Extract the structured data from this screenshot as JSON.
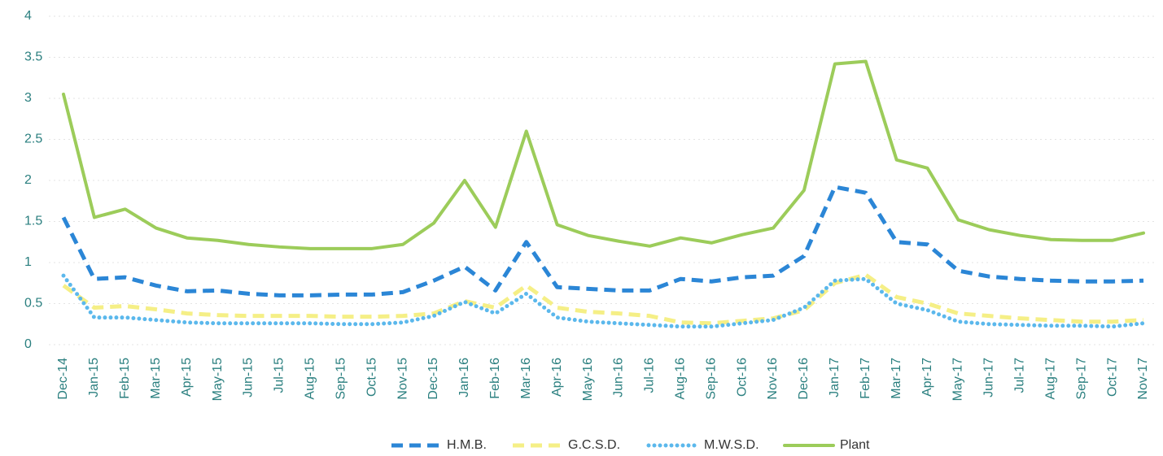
{
  "chart_data": {
    "type": "line",
    "categories": [
      "Dec-14",
      "Jan-15",
      "Feb-15",
      "Mar-15",
      "Apr-15",
      "May-15",
      "Jun-15",
      "Jul-15",
      "Aug-15",
      "Sep-15",
      "Oct-15",
      "Nov-15",
      "Dec-15",
      "Jan-16",
      "Feb-16",
      "Mar-16",
      "Apr-16",
      "May-16",
      "Jun-16",
      "Jul-16",
      "Aug-16",
      "Sep-16",
      "Oct-16",
      "Nov-16",
      "Dec-16",
      "Jan-17",
      "Feb-17",
      "Mar-17",
      "Apr-17",
      "May-17",
      "Jun-17",
      "Jul-17",
      "Aug-17",
      "Sep-17",
      "Oct-17",
      "Nov-17"
    ],
    "series": [
      {
        "name": "H.M.B.",
        "color": "#2b86d6",
        "style": "dashed",
        "values": [
          1.55,
          0.8,
          0.82,
          0.72,
          0.65,
          0.66,
          0.62,
          0.6,
          0.6,
          0.61,
          0.61,
          0.64,
          0.78,
          0.95,
          0.66,
          1.25,
          0.7,
          0.68,
          0.66,
          0.66,
          0.8,
          0.77,
          0.82,
          0.84,
          1.08,
          1.92,
          1.85,
          1.25,
          1.22,
          0.9,
          0.83,
          0.8,
          0.78,
          0.77,
          0.77,
          0.78
        ]
      },
      {
        "name": "G.C.S.D.",
        "color": "#f5ef86",
        "style": "dashed",
        "values": [
          0.72,
          0.45,
          0.47,
          0.43,
          0.38,
          0.36,
          0.35,
          0.35,
          0.35,
          0.34,
          0.34,
          0.35,
          0.38,
          0.53,
          0.45,
          0.72,
          0.45,
          0.4,
          0.38,
          0.35,
          0.27,
          0.26,
          0.29,
          0.32,
          0.42,
          0.75,
          0.85,
          0.58,
          0.5,
          0.38,
          0.35,
          0.32,
          0.3,
          0.28,
          0.28,
          0.3
        ]
      },
      {
        "name": "M.W.S.D.",
        "color": "#5bb8ec",
        "style": "dotted",
        "values": [
          0.84,
          0.33,
          0.33,
          0.3,
          0.27,
          0.26,
          0.26,
          0.26,
          0.26,
          0.25,
          0.25,
          0.27,
          0.35,
          0.52,
          0.38,
          0.62,
          0.33,
          0.28,
          0.26,
          0.24,
          0.22,
          0.22,
          0.26,
          0.3,
          0.45,
          0.78,
          0.8,
          0.5,
          0.42,
          0.28,
          0.25,
          0.24,
          0.23,
          0.23,
          0.22,
          0.26
        ]
      },
      {
        "name": "Plant",
        "color": "#9ccc5a",
        "style": "solid",
        "values": [
          3.05,
          1.55,
          1.65,
          1.42,
          1.3,
          1.27,
          1.22,
          1.19,
          1.17,
          1.17,
          1.17,
          1.22,
          1.48,
          2.0,
          1.43,
          2.6,
          1.46,
          1.33,
          1.26,
          1.2,
          1.3,
          1.24,
          1.34,
          1.42,
          1.88,
          3.42,
          3.45,
          2.25,
          2.15,
          1.52,
          1.4,
          1.33,
          1.28,
          1.27,
          1.27,
          1.36
        ]
      }
    ],
    "ylim": [
      0,
      4
    ],
    "yticks": [
      0,
      0.5,
      1,
      1.5,
      2,
      2.5,
      3,
      3.5,
      4
    ],
    "grid": true,
    "legend": "bottom"
  }
}
